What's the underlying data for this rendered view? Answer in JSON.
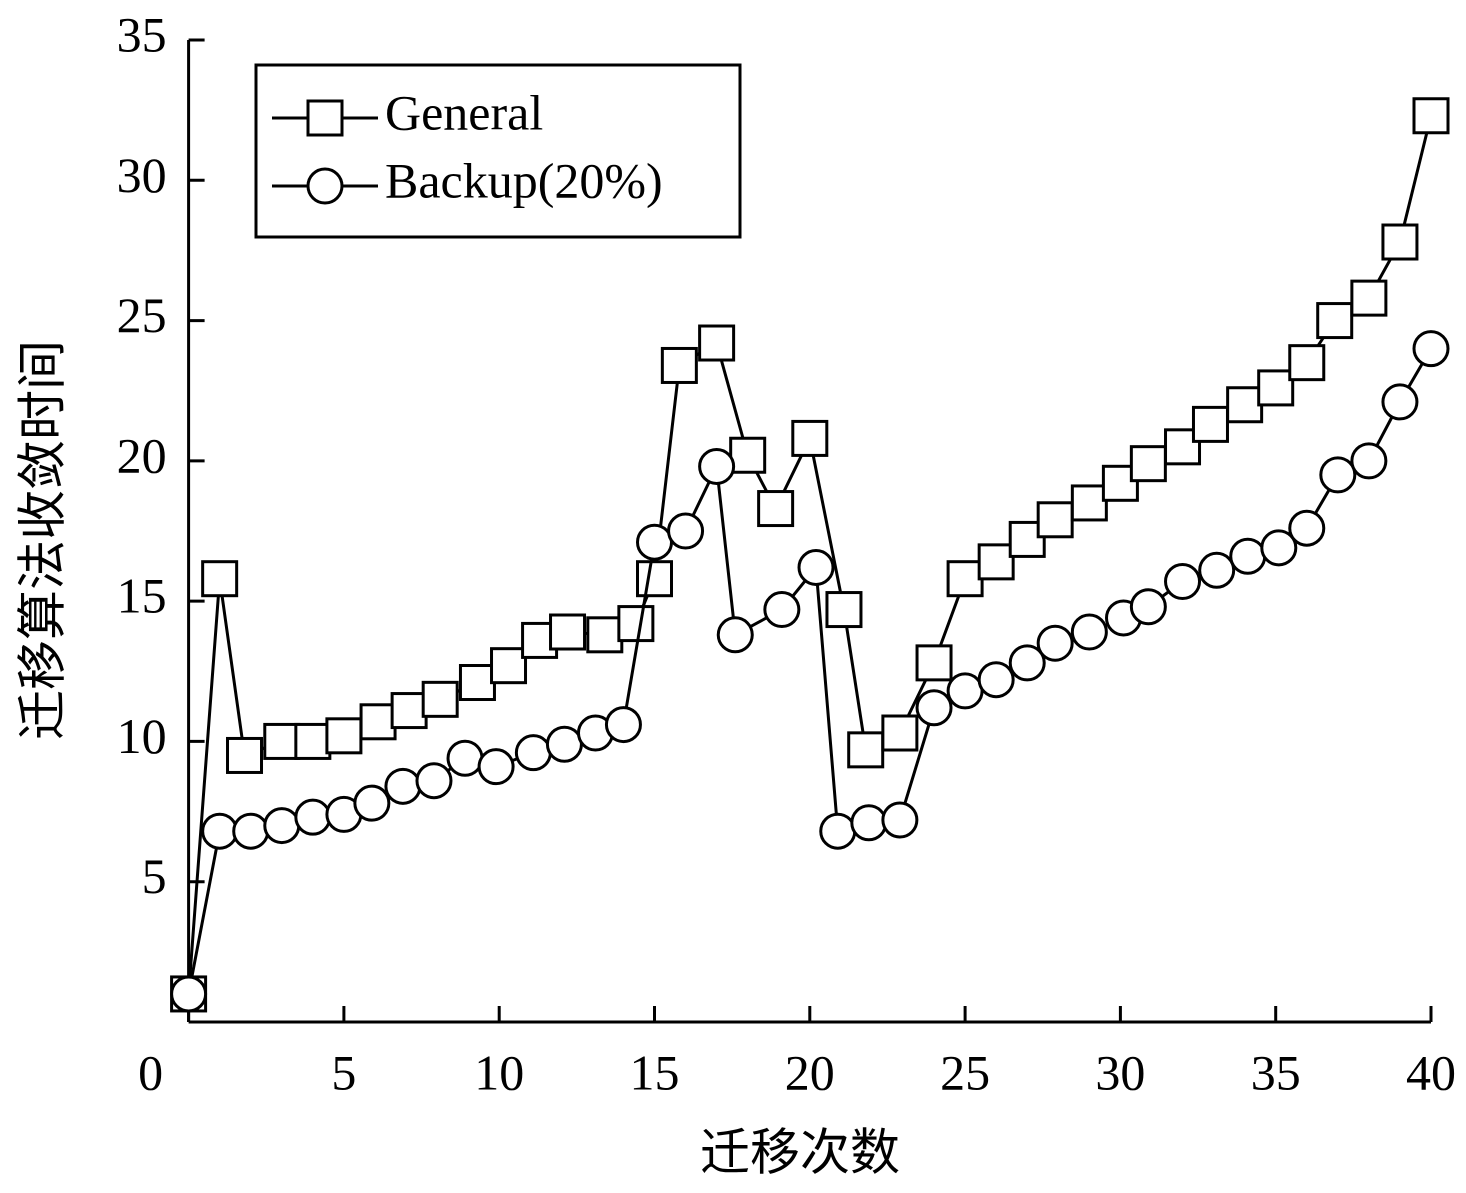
{
  "chart_data": {
    "type": "line",
    "xlabel": "迁移次数",
    "ylabel": "迁移算法收敛时间",
    "xlim": [
      0,
      40
    ],
    "xticks": [
      0,
      5,
      10,
      15,
      20,
      25,
      30,
      35,
      40
    ],
    "ylim": [
      0,
      35
    ],
    "yticks": [
      5,
      10,
      15,
      20,
      25,
      30,
      35
    ],
    "legend": "upper left",
    "series": [
      {
        "name": "General",
        "color": "#000000",
        "marker": "square",
        "x": [
          0,
          1.0,
          1.8,
          3.0,
          4.0,
          5.0,
          6.1,
          7.1,
          8.1,
          9.3,
          10.3,
          11.3,
          12.2,
          13.4,
          14.4,
          15.0,
          15.8,
          17.0,
          18.0,
          18.9,
          20.0,
          21.1,
          21.8,
          22.9,
          24.0,
          25.0,
          26.0,
          27.0,
          27.9,
          29.0,
          30.0,
          30.9,
          32.0,
          32.9,
          34.0,
          35.0,
          36.0,
          36.9,
          38.0,
          39.0,
          40.0
        ],
        "values": [
          1.0,
          15.8,
          9.5,
          10.0,
          10.0,
          10.2,
          10.7,
          11.1,
          11.5,
          12.1,
          12.7,
          13.6,
          13.9,
          13.8,
          14.2,
          15.8,
          23.4,
          24.2,
          20.2,
          18.3,
          20.8,
          14.7,
          9.7,
          10.3,
          12.8,
          15.8,
          16.4,
          17.2,
          17.9,
          18.5,
          19.2,
          19.9,
          20.5,
          21.3,
          22.0,
          22.6,
          23.5,
          25.0,
          25.8,
          27.8,
          32.3
        ]
      },
      {
        "name": "Backup(20%)",
        "color": "#000000",
        "marker": "circle",
        "x": [
          0,
          1.0,
          2.0,
          3.0,
          4.0,
          5.0,
          5.9,
          6.9,
          7.9,
          8.9,
          9.9,
          11.1,
          12.1,
          13.1,
          14.0,
          15.0,
          16.0,
          17.0,
          17.6,
          19.1,
          20.2,
          20.9,
          21.9,
          22.9,
          24.0,
          25.0,
          26.0,
          27.0,
          27.9,
          29.0,
          30.1,
          30.9,
          32.0,
          33.1,
          34.1,
          35.1,
          36.0,
          37.0,
          38.0,
          39.0,
          40.0
        ],
        "values": [
          1.0,
          6.8,
          6.8,
          7.0,
          7.3,
          7.4,
          7.8,
          8.4,
          8.6,
          9.4,
          9.1,
          9.6,
          9.9,
          10.3,
          10.6,
          17.1,
          17.5,
          19.8,
          13.8,
          14.7,
          16.2,
          6.8,
          7.1,
          7.2,
          11.2,
          11.8,
          12.2,
          12.8,
          13.5,
          13.9,
          14.4,
          14.8,
          15.7,
          16.1,
          16.6,
          16.9,
          17.6,
          19.5,
          20.0,
          22.1,
          24.0
        ]
      }
    ]
  }
}
